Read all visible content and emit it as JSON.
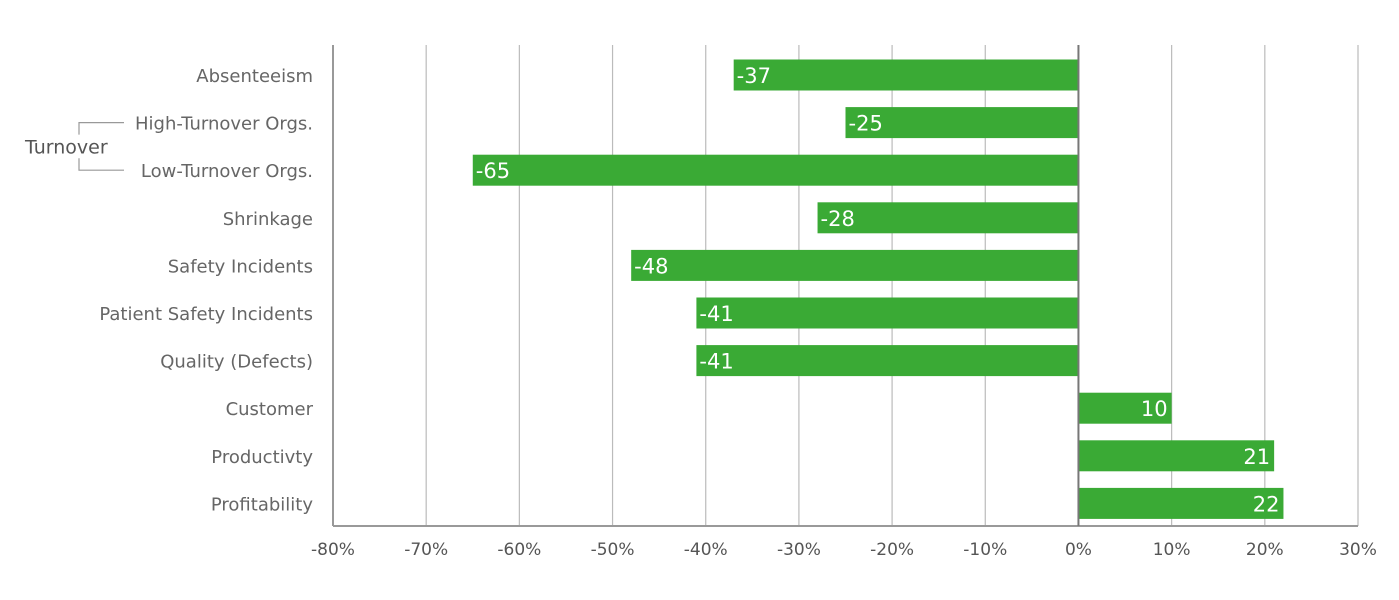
{
  "chart_data": {
    "type": "bar",
    "orientation": "horizontal",
    "categories": [
      "Absenteeism",
      "High-Turnover Orgs.",
      "Low-Turnover Orgs.",
      "Shrinkage",
      "Safety Incidents",
      "Patient Safety Incidents",
      "Quality (Defects)",
      "Customer",
      "Productivty",
      "Profitability"
    ],
    "values": [
      -37,
      -25,
      -65,
      -28,
      -48,
      -41,
      -41,
      10,
      21,
      22
    ],
    "value_labels": [
      "-37",
      "-25",
      "-65",
      "-28",
      "-48",
      "-41",
      "-41",
      "10",
      "21",
      "22"
    ],
    "groups": [
      {
        "label": "Turnover",
        "members": [
          "High-Turnover Orgs.",
          "Low-Turnover Orgs."
        ]
      }
    ],
    "xlim": [
      -80,
      30
    ],
    "xticks": [
      -80,
      -70,
      -60,
      -50,
      -40,
      -30,
      -20,
      -10,
      0,
      10,
      20,
      30
    ],
    "xtick_labels": [
      "-80%",
      "-70%",
      "-60%",
      "-50%",
      "-40%",
      "-30%",
      "-20%",
      "-10%",
      "0%",
      "10%",
      "20%",
      "30%"
    ],
    "grid": "vertical",
    "title": "",
    "xlabel": "",
    "ylabel": "",
    "colors": {
      "bar": "#3aaa35",
      "grid": "#bbbbbb",
      "axis": "#999999"
    }
  }
}
